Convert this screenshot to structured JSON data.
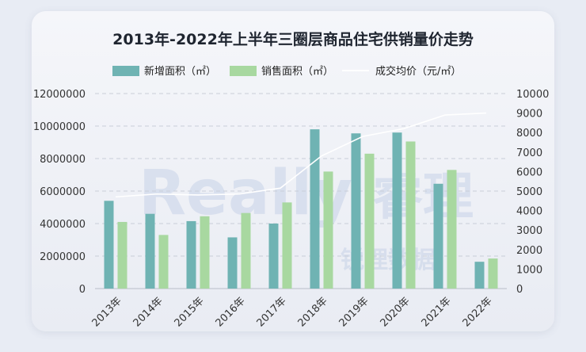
{
  "chart_data": {
    "type": "bar",
    "title": "2013年-2022年上半年三圈层商品住宅供销量价走势",
    "categories": [
      "2013年",
      "2014年",
      "2015年",
      "2016年",
      "2017年",
      "2018年",
      "2019年",
      "2020年",
      "2021年",
      "2022年"
    ],
    "series": [
      {
        "name": "新增面积（㎡）",
        "type": "bar",
        "axis": "left",
        "color": "#6fb3b3",
        "values": [
          5400000,
          4600000,
          4150000,
          3150000,
          4000000,
          9800000,
          9550000,
          9600000,
          6450000,
          1650000
        ]
      },
      {
        "name": "销售面积（㎡）",
        "type": "bar",
        "axis": "left",
        "color": "#a8d8a0",
        "values": [
          4100000,
          3300000,
          4450000,
          4650000,
          5300000,
          7200000,
          8300000,
          9050000,
          7300000,
          1850000
        ]
      },
      {
        "name": "成交均价（元/㎡）",
        "type": "line",
        "axis": "right",
        "color": "#ffffff",
        "values": [
          4700,
          4850,
          4800,
          4850,
          5150,
          6800,
          7800,
          8200,
          8900,
          9000
        ]
      }
    ],
    "ylim_left": [
      0,
      12000000
    ],
    "yticks_left": [
      "0",
      "2000000",
      "4000000",
      "6000000",
      "8000000",
      "10000000",
      "12000000"
    ],
    "ylim_right": [
      0,
      10000
    ],
    "yticks_right": [
      "0",
      "1000",
      "2000",
      "3000",
      "4000",
      "5000",
      "6000",
      "7000",
      "8000",
      "9000",
      "10000"
    ],
    "grid": true,
    "legend_position": "top-center"
  },
  "watermark": {
    "latin": "Really",
    "cn_top": "睿理",
    "cn_bottom": "锐理数据"
  }
}
